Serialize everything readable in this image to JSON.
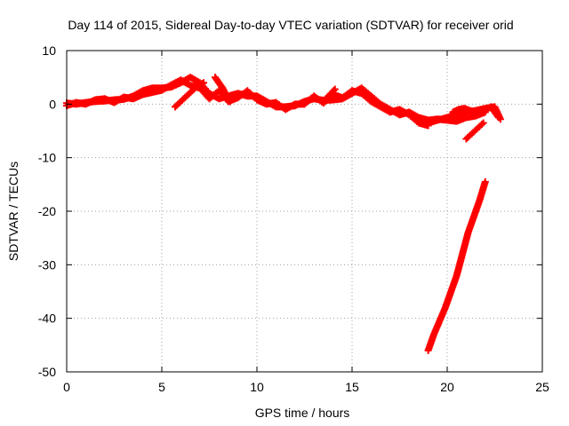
{
  "chart_data": {
    "type": "scatter",
    "title": "Day 114 of 2015, Sidereal Day-to-day VTEC variation (SDTVAR) for receiver orid",
    "xlabel": "GPS time / hours",
    "ylabel": "SDTVAR / TECUs",
    "xlim": [
      0,
      25
    ],
    "ylim": [
      -50,
      10
    ],
    "xticks": [
      0,
      5,
      10,
      15,
      20,
      25
    ],
    "yticks": [
      -50,
      -40,
      -30,
      -20,
      -10,
      0,
      10
    ],
    "grid": true,
    "legend": "none",
    "marker": "plus",
    "color": "#ff0000",
    "segments": [
      {
        "x": [
          0.0,
          0.5,
          1.0,
          1.5,
          2.0,
          2.5,
          3.0,
          3.5,
          4.0,
          4.5,
          5.0,
          5.5,
          6.0,
          6.5,
          7.0,
          7.5,
          8.0,
          8.5,
          9.0,
          9.5,
          10.0,
          10.5,
          11.0,
          11.5,
          12.0,
          12.5,
          13.0,
          13.5,
          14.0,
          14.5,
          15.0,
          15.5,
          16.0,
          16.5,
          17.0,
          17.5,
          18.0,
          18.5,
          19.0,
          19.5,
          20.0,
          20.5,
          21.0,
          21.5,
          22.0
        ],
        "y": [
          0.2,
          0.0,
          0.3,
          0.5,
          0.6,
          0.8,
          0.9,
          1.5,
          2.5,
          3.0,
          3.0,
          3.2,
          4.0,
          5.0,
          4.0,
          2.0,
          1.0,
          1.5,
          2.0,
          1.5,
          1.5,
          0.5,
          -0.5,
          -0.5,
          -0.3,
          0.5,
          1.0,
          0.7,
          0.8,
          1.0,
          2.0,
          3.0,
          1.5,
          0.0,
          -1.0,
          -2.0,
          -1.5,
          -2.5,
          -3.0,
          -2.8,
          -3.0,
          -3.2,
          -2.5,
          -2.2,
          -1.5
        ]
      },
      {
        "x": [
          0.0,
          0.5,
          1.0,
          1.5,
          2.0,
          2.5,
          3.0,
          3.5,
          4.0,
          4.5,
          5.0,
          5.5,
          6.0,
          6.5,
          7.0,
          7.5,
          8.0,
          8.5,
          9.0,
          9.5,
          10.0,
          10.5,
          11.0,
          11.5,
          12.0,
          12.5,
          13.0,
          13.5,
          14.0,
          14.5,
          15.0,
          15.5,
          16.0,
          16.5,
          17.0,
          17.5,
          18.0,
          18.5,
          19.0
        ],
        "y": [
          -0.3,
          0.3,
          0.0,
          0.8,
          1.0,
          0.3,
          1.3,
          1.0,
          1.8,
          2.2,
          2.6,
          3.6,
          4.5,
          3.5,
          3.0,
          1.0,
          2.5,
          0.5,
          1.2,
          2.5,
          0.8,
          0.0,
          0.3,
          -1.0,
          0.0,
          0.0,
          1.5,
          0.2,
          1.8,
          1.2,
          2.5,
          2.0,
          0.5,
          -0.5,
          -1.5,
          -1.0,
          -2.0,
          -3.5,
          -4.0
        ]
      },
      {
        "x": [
          5.7,
          6.0,
          6.3,
          6.6,
          6.9,
          7.2
        ],
        "y": [
          -0.5,
          0.5,
          1.5,
          2.5,
          3.5,
          4.0
        ]
      },
      {
        "x": [
          7.8,
          8.0,
          8.2,
          8.4,
          8.6
        ],
        "y": [
          5.0,
          4.0,
          3.0,
          1.5,
          0.5
        ]
      },
      {
        "x": [
          13.5,
          13.7,
          13.9,
          14.1
        ],
        "y": [
          0.5,
          1.3,
          2.0,
          2.8
        ]
      },
      {
        "x": [
          19.0,
          19.5,
          20.0,
          20.5,
          21.0,
          21.5,
          22.0,
          22.5,
          22.8
        ],
        "y": [
          -3.5,
          -3.0,
          -2.5,
          -2.0,
          -1.5,
          -1.2,
          -0.8,
          -0.5,
          -2.8
        ]
      },
      {
        "x": [
          20.3,
          20.6,
          20.9,
          21.2,
          21.5
        ],
        "y": [
          -1.5,
          -1.0,
          -0.8,
          -1.2,
          -1.5
        ]
      },
      {
        "x": [
          22.3,
          22.5,
          22.7
        ],
        "y": [
          -0.5,
          -1.5,
          -2.5
        ]
      },
      {
        "x": [
          21.0,
          21.3,
          21.6,
          21.9
        ],
        "y": [
          -6.5,
          -5.5,
          -4.5,
          -3.5
        ]
      },
      {
        "x": [
          19.0,
          19.3,
          19.6,
          19.9,
          20.2,
          20.5,
          20.8,
          21.1,
          21.4,
          21.7,
          22.0
        ],
        "y": [
          -46.0,
          -43.0,
          -40.5,
          -38.0,
          -35.0,
          -32.0,
          -28.0,
          -24.0,
          -21.0,
          -18.0,
          -14.5
        ]
      }
    ]
  }
}
